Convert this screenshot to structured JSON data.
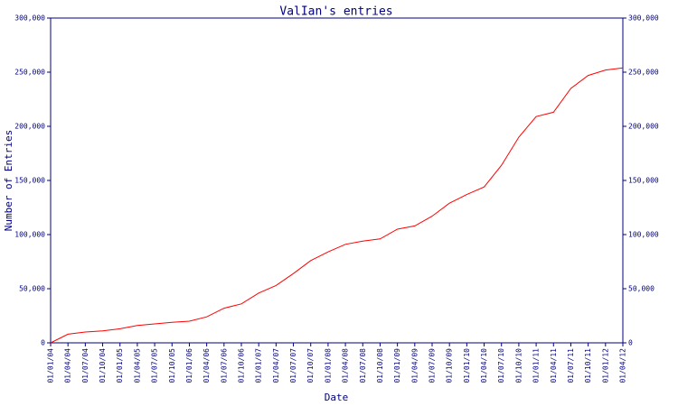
{
  "chart_data": {
    "type": "line",
    "title": "ValIan's entries",
    "xlabel": "Date",
    "ylabel": "Number of Entries",
    "categories": [
      "01/01/04",
      "01/04/04",
      "01/07/04",
      "01/10/04",
      "01/01/05",
      "01/04/05",
      "01/07/05",
      "01/10/05",
      "01/01/06",
      "01/04/06",
      "01/07/06",
      "01/10/06",
      "01/01/07",
      "01/04/07",
      "01/07/07",
      "01/10/07",
      "01/01/08",
      "01/04/08",
      "01/07/08",
      "01/10/08",
      "01/01/09",
      "01/04/09",
      "01/07/09",
      "01/10/09",
      "01/01/10",
      "01/04/10",
      "01/07/10",
      "01/10/10",
      "01/01/11",
      "01/04/11",
      "01/07/11",
      "01/10/11",
      "01/01/12",
      "01/04/12"
    ],
    "series": [
      {
        "name": "ValIan",
        "color": "#ff0000",
        "values": [
          0,
          8000,
          10000,
          11000,
          13000,
          16000,
          17500,
          19000,
          20000,
          24000,
          32000,
          36000,
          46000,
          53000,
          64000,
          76000,
          84000,
          91000,
          94000,
          96000,
          105000,
          108000,
          117000,
          129000,
          137000,
          144000,
          164000,
          190000,
          209000,
          213000,
          235000,
          247000,
          252000,
          254000
        ]
      }
    ],
    "ylim": [
      0,
      300000
    ],
    "yticks": [
      0,
      {
        "value": 50000,
        "label": "50,000"
      },
      {
        "value": 100000,
        "label": "100,000"
      },
      {
        "value": 150000,
        "label": "150,000"
      },
      {
        "value": 200000,
        "label": "200,000"
      },
      {
        "value": 250000,
        "label": "250,000"
      },
      {
        "value": 300000,
        "label": "300,000"
      }
    ],
    "y2lim": [
      0,
      300000
    ],
    "y2ticks": [
      0,
      {
        "value": 50000,
        "label": "50,000"
      },
      {
        "value": 100000,
        "label": "100,000"
      },
      {
        "value": 150000,
        "label": "150,000"
      },
      {
        "value": 200000,
        "label": "200,000"
      },
      {
        "value": 250000,
        "label": "250,000"
      },
      {
        "value": 300000,
        "label": "300,000"
      }
    ],
    "grid": false,
    "axis_color": "#000080"
  }
}
